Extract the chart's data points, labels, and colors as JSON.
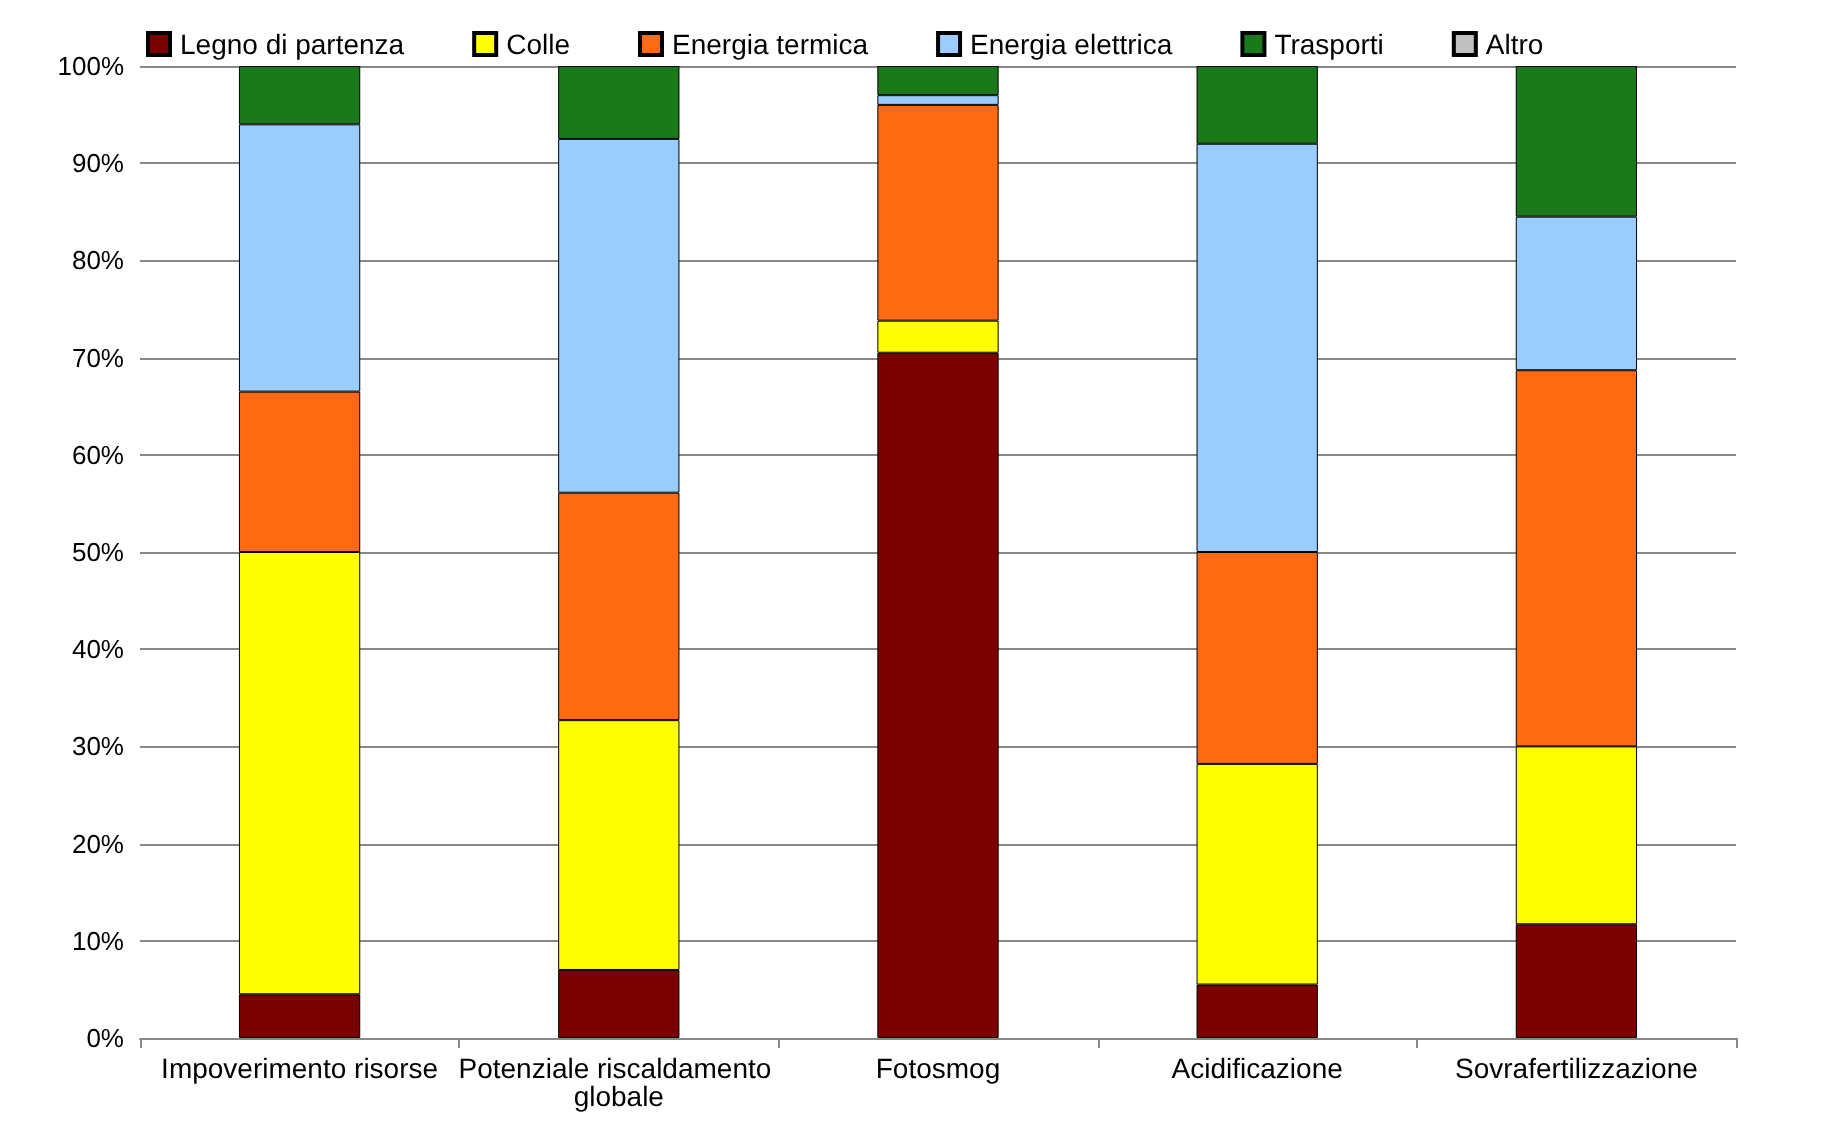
{
  "chart_data": {
    "type": "bar",
    "stacked": true,
    "categories": [
      "Impoverimento risorse",
      "Potenziale riscaldamento globale",
      "Fotosmog",
      "Acidificazione",
      "Sovrafertilizzazione"
    ],
    "series": [
      {
        "name": "Legno di partenza",
        "color": "#7b0000",
        "values": [
          4.5,
          7,
          70.5,
          5.5,
          11.7
        ]
      },
      {
        "name": "Colle",
        "color": "#ffff00",
        "values": [
          45.5,
          25.7,
          3.3,
          22.7,
          18.3
        ]
      },
      {
        "name": "Energia termica",
        "color": "#ff6a13",
        "values": [
          16.5,
          23.4,
          22.2,
          21.8,
          38.7
        ]
      },
      {
        "name": "Energia elettrica",
        "color": "#99ccff",
        "values": [
          27.5,
          36.4,
          1,
          42,
          15.8
        ]
      },
      {
        "name": "Trasporti",
        "color": "#1a7a1a",
        "values": [
          6,
          7.5,
          3,
          8,
          15.5
        ]
      },
      {
        "name": "Altro",
        "color": "#c0c0c0",
        "values": [
          0,
          0,
          0,
          0,
          0
        ]
      }
    ],
    "ylim": [
      0,
      100
    ],
    "yticks": [
      {
        "value": 0,
        "label": "0%"
      },
      {
        "value": 10,
        "label": "10%"
      },
      {
        "value": 20,
        "label": "20%"
      },
      {
        "value": 30,
        "label": "30%"
      },
      {
        "value": 40,
        "label": "40%"
      },
      {
        "value": 50,
        "label": "50%"
      },
      {
        "value": 60,
        "label": "60%"
      },
      {
        "value": 70,
        "label": "70%"
      },
      {
        "value": 80,
        "label": "80%"
      },
      {
        "value": 90,
        "label": "90%"
      },
      {
        "value": 100,
        "label": "100%"
      }
    ],
    "grid": "y",
    "legend": "top"
  }
}
